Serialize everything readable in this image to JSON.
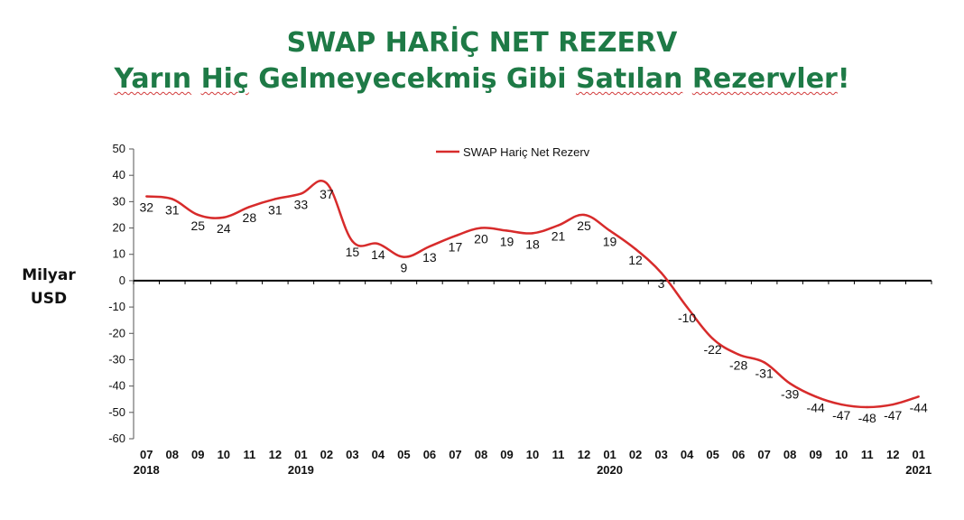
{
  "title": {
    "line1": "SWAP HARİÇ NET REZERV",
    "line2_parts": [
      "Yarın",
      " ",
      "Hiç",
      " Gelmeyecekmiş Gibi ",
      "Satılan",
      " ",
      "Rezervler",
      "!"
    ]
  },
  "ylabel_line1": "Milyar",
  "ylabel_line2": "USD",
  "colors": {
    "title": "#1e7a46",
    "series": "#d72b2b",
    "zero_line": "#000000",
    "axis": "#555555"
  },
  "chart_data": {
    "type": "line",
    "title": "SWAP HARİÇ NET REZERV",
    "ylabel": "Milyar USD",
    "ylim": [
      -60,
      50
    ],
    "yticks": [
      50,
      40,
      30,
      20,
      10,
      0,
      -10,
      -20,
      -30,
      -40,
      -50,
      -60
    ],
    "grid": false,
    "legend_position": "top-center",
    "categories": [
      "07",
      "08",
      "09",
      "10",
      "11",
      "12",
      "01",
      "02",
      "03",
      "04",
      "05",
      "06",
      "07",
      "08",
      "09",
      "10",
      "11",
      "12",
      "01",
      "02",
      "03",
      "04",
      "05",
      "06",
      "07",
      "08",
      "09",
      "10",
      "11",
      "12",
      "01"
    ],
    "year_labels": [
      {
        "index": 0,
        "label": "2018"
      },
      {
        "index": 6,
        "label": "2019"
      },
      {
        "index": 18,
        "label": "2020"
      },
      {
        "index": 30,
        "label": "2021"
      }
    ],
    "series": [
      {
        "name": "SWAP Hariç Net Rezerv",
        "values": [
          32,
          31,
          25,
          24,
          28,
          31,
          33,
          37,
          15,
          14,
          9,
          13,
          17,
          20,
          19,
          18,
          21,
          25,
          19,
          12,
          3,
          -10,
          -22,
          -28,
          -31,
          -39,
          -44,
          -47,
          -48,
          -47,
          -44
        ]
      }
    ]
  }
}
